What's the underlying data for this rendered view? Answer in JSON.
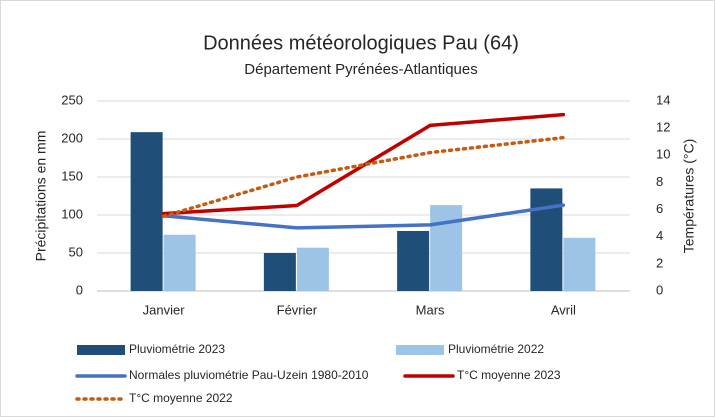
{
  "chart_data": {
    "type": "combo",
    "title": "Données météorologiques Pau (64)",
    "subtitle": "Département Pyrénées-Atlantiques",
    "y_label": "Précipitations en mm",
    "y2_label": "Températures (°C)",
    "categories": [
      "Janvier",
      "Février",
      "Mars",
      "Avril"
    ],
    "series": [
      {
        "name": "Pluviométrie 2023",
        "type": "bar",
        "color": "#1f4e79",
        "values": [
          209,
          50,
          79,
          135
        ]
      },
      {
        "name": "Pluviométrie 2022",
        "type": "bar",
        "color": "#9dc3e6",
        "values": [
          74,
          57,
          113,
          70
        ]
      },
      {
        "name": "Normales pluviométrie Pau-Uzein 1980-2010",
        "type": "line",
        "color": "#4472c4",
        "values": [
          99,
          83,
          87,
          113
        ]
      },
      {
        "name": "T°C moyenne 2023",
        "type": "line",
        "axis": "y2",
        "color": "#c00000",
        "values": [
          5.7,
          6.3,
          12.2,
          13.0
        ]
      },
      {
        "name": "T°C moyenne 2022",
        "type": "line",
        "axis": "y2",
        "dash": "dotted",
        "color": "#c55a11",
        "values": [
          5.5,
          8.4,
          10.2,
          11.3
        ]
      }
    ],
    "ylim": [
      0,
      250
    ],
    "yticks": [
      0,
      50,
      100,
      150,
      200,
      250
    ],
    "y2lim": [
      0,
      14
    ],
    "y2ticks": [
      0,
      2,
      4,
      6,
      8,
      10,
      12,
      14
    ],
    "grid": true,
    "legend": "bottom"
  }
}
